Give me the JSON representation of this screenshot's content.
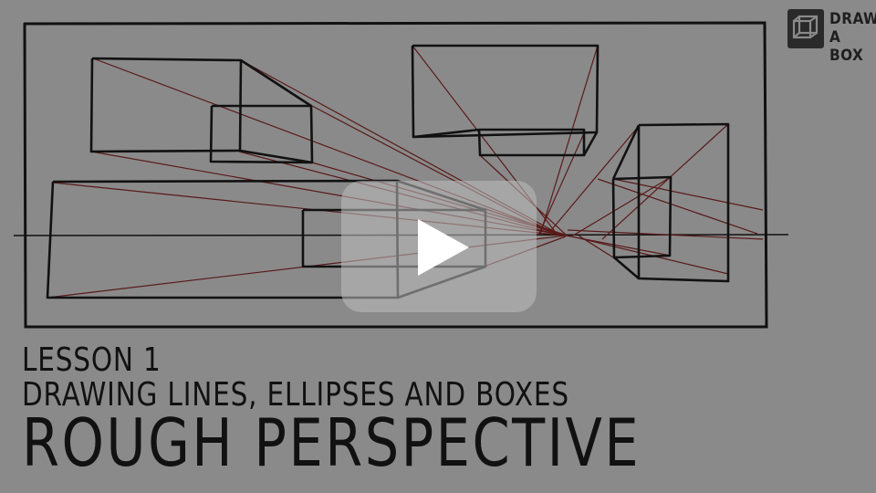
{
  "brand": {
    "logo_line1": "DRAW",
    "logo_line2": "A BOX"
  },
  "title": {
    "lesson": "LESSON 1",
    "subtitle": "DRAWING LINES, ELLIPSES AND BOXES",
    "main": "ROUGH PERSPECTIVE"
  },
  "colors": {
    "background": "#8a8a8a",
    "ink": "#111111",
    "construction_lines": "#5a1a1a",
    "play_button": "#bebebe"
  },
  "icons": {
    "play": "play-icon",
    "logo": "box-logo-icon"
  }
}
